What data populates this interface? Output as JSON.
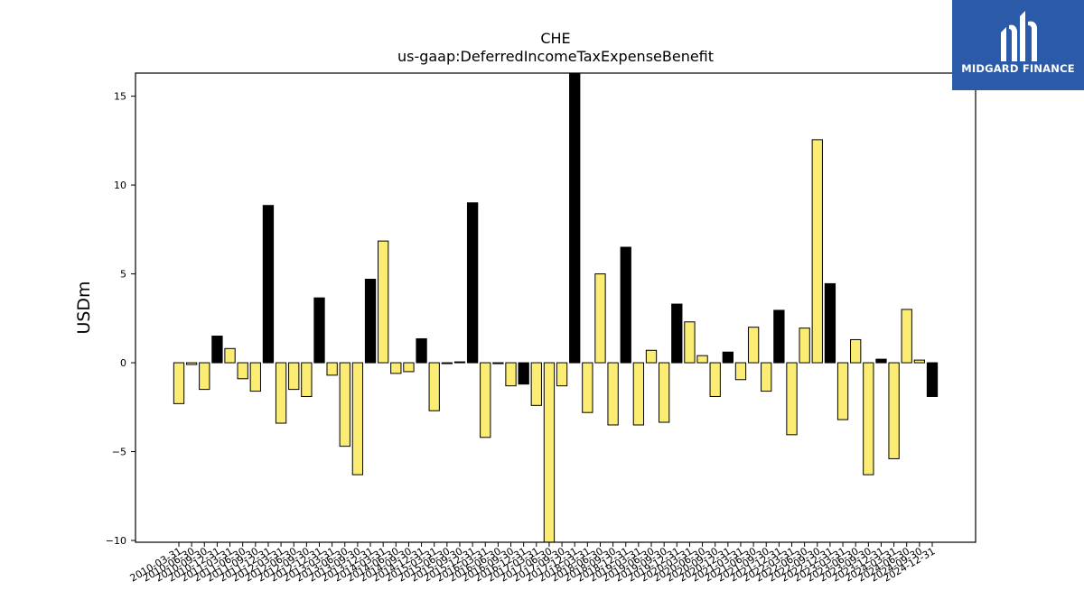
{
  "logo": {
    "name": "MIDGARD FINANCE",
    "bg_color": "#2b5ba8"
  },
  "chart_data": {
    "type": "bar",
    "title": "CHE",
    "subtitle": "us-gaap:DeferredIncomeTaxExpenseBenefit",
    "xlabel": "",
    "ylabel": "USDm",
    "ylim": [
      -10.1,
      16.3
    ],
    "yticks": [
      -10,
      -5,
      0,
      5,
      10,
      15
    ],
    "ytick_labels": [
      "−10",
      "−5",
      "0",
      "5",
      "10",
      "15"
    ],
    "grid": false,
    "colors": {
      "default": "#fbec74",
      "highlight": "#000000",
      "edge": "#000000"
    },
    "categories": [
      "2010-03-31",
      "2010-06-30",
      "2010-09-30",
      "2010-12-31",
      "2011-03-31",
      "2011-06-30",
      "2011-09-30",
      "2011-12-31",
      "2012-03-31",
      "2012-06-30",
      "2012-09-30",
      "2012-12-31",
      "2013-03-31",
      "2013-06-30",
      "2013-09-30",
      "2013-12-31",
      "2014-03-31",
      "2014-06-30",
      "2014-09-30",
      "2014-12-31",
      "2015-03-31",
      "2015-06-30",
      "2015-09-30",
      "2015-12-31",
      "2016-03-31",
      "2016-06-30",
      "2016-09-30",
      "2016-12-31",
      "2017-03-31",
      "2017-06-30",
      "2017-09-30",
      "2017-12-31",
      "2018-03-31",
      "2018-06-30",
      "2018-09-30",
      "2018-12-31",
      "2019-03-31",
      "2019-06-30",
      "2019-09-30",
      "2019-12-31",
      "2020-03-31",
      "2020-06-30",
      "2020-09-30",
      "2020-12-31",
      "2021-03-31",
      "2021-06-30",
      "2021-09-30",
      "2021-12-31",
      "2022-03-31",
      "2022-06-30",
      "2022-09-30",
      "2022-12-31",
      "2023-03-31",
      "2023-06-30",
      "2023-09-30",
      "2023-12-31",
      "2024-03-31",
      "2024-06-30",
      "2024-09-30",
      "2024-12-31"
    ],
    "values": [
      -2.3,
      -0.1,
      -1.5,
      1.5,
      0.8,
      -0.9,
      -1.6,
      8.85,
      -3.4,
      -1.5,
      -1.9,
      3.65,
      -0.7,
      -4.7,
      -6.3,
      4.7,
      6.85,
      -0.6,
      -0.5,
      1.35,
      -2.7,
      -0.05,
      0.05,
      9.0,
      -4.2,
      -0.05,
      -1.3,
      -1.2,
      -2.4,
      -10.1,
      -1.3,
      16.3,
      -2.8,
      5.0,
      -3.5,
      6.5,
      -3.5,
      0.7,
      -3.35,
      3.3,
      2.3,
      0.4,
      -1.9,
      0.6,
      -0.95,
      2.0,
      -1.6,
      2.95,
      -4.05,
      1.95,
      12.55,
      4.45,
      -3.2,
      1.3,
      -6.3,
      0.2,
      -5.4,
      3.0,
      0.15,
      -1.9
    ],
    "highlight": [
      false,
      false,
      false,
      true,
      false,
      false,
      false,
      true,
      false,
      false,
      false,
      true,
      false,
      false,
      false,
      true,
      false,
      false,
      false,
      true,
      false,
      false,
      false,
      true,
      false,
      false,
      false,
      true,
      false,
      false,
      false,
      true,
      false,
      false,
      false,
      true,
      false,
      false,
      false,
      true,
      false,
      false,
      false,
      true,
      false,
      false,
      false,
      true,
      false,
      false,
      false,
      true,
      false,
      false,
      false,
      true,
      false,
      false,
      false,
      true
    ]
  }
}
